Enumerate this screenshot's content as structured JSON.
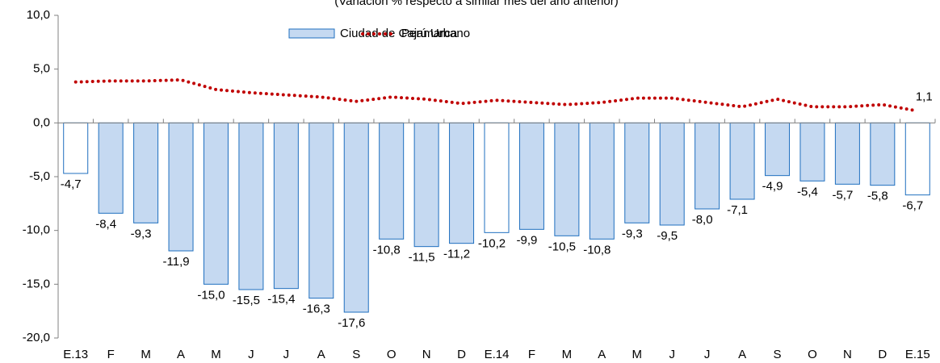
{
  "chart_data": {
    "type": "bar",
    "subtitle": "(Variación % respecto a similar mes del año anterior)",
    "categories": [
      "E.13",
      "F",
      "M",
      "A",
      "M",
      "J",
      "J",
      "A",
      "S",
      "O",
      "N",
      "D",
      "E.14",
      "F",
      "M",
      "A",
      "M",
      "J",
      "J",
      "A",
      "S",
      "O",
      "N",
      "D",
      "E.15"
    ],
    "series": [
      {
        "name": "Ciudad de Cajamarca",
        "type": "bar",
        "color": "#c5d9f1",
        "edge_color": "#1f6fbf",
        "bar_colors": [
          "#ffffff",
          "#c5d9f1",
          "#c5d9f1",
          "#c5d9f1",
          "#c5d9f1",
          "#c5d9f1",
          "#c5d9f1",
          "#c5d9f1",
          "#c5d9f1",
          "#c5d9f1",
          "#c5d9f1",
          "#c5d9f1",
          "#ffffff",
          "#c5d9f1",
          "#c5d9f1",
          "#c5d9f1",
          "#c5d9f1",
          "#c5d9f1",
          "#c5d9f1",
          "#c5d9f1",
          "#c5d9f1",
          "#c5d9f1",
          "#c5d9f1",
          "#c5d9f1",
          "#ffffff"
        ],
        "values": [
          -4.7,
          -8.4,
          -9.3,
          -11.9,
          -15.0,
          -15.5,
          -15.4,
          -16.3,
          -17.6,
          -10.8,
          -11.5,
          -11.2,
          -10.2,
          -9.9,
          -10.5,
          -10.8,
          -9.3,
          -9.5,
          -8.0,
          -7.1,
          -4.9,
          -5.4,
          -5.7,
          -5.8,
          -6.7
        ],
        "value_labels": [
          "-4,7",
          "-8,4",
          "-9,3",
          "-11,9",
          "-15,0",
          "-15,5",
          "-15,4",
          "-16,3",
          "-17,6",
          "-10,8",
          "-11,5",
          "-11,2",
          "-10,2",
          "-9,9",
          "-10,5",
          "-10,8",
          "-9,3",
          "-9,5",
          "-8,0",
          "-7,1",
          "-4,9",
          "-5,4",
          "-5,7",
          "-5,8",
          "-6,7"
        ]
      },
      {
        "name": "Perú Urbano",
        "type": "line",
        "color": "#c00000",
        "line_style": "dotted",
        "values": [
          3.8,
          3.9,
          3.9,
          4.0,
          3.1,
          2.8,
          2.6,
          2.4,
          2.0,
          2.4,
          2.2,
          1.8,
          2.1,
          1.9,
          1.7,
          1.9,
          2.3,
          2.3,
          1.9,
          1.5,
          2.2,
          1.5,
          1.5,
          1.7,
          1.1
        ],
        "value_labels": [
          null,
          null,
          null,
          null,
          null,
          null,
          null,
          null,
          null,
          null,
          null,
          null,
          null,
          null,
          null,
          null,
          null,
          null,
          null,
          null,
          null,
          null,
          null,
          null,
          "1,1"
        ]
      }
    ],
    "ylim": [
      -20,
      10
    ],
    "yticks": [
      {
        "value": -20,
        "label": "-20,0"
      },
      {
        "value": -15,
        "label": "-15,0"
      },
      {
        "value": -10,
        "label": "-10,0"
      },
      {
        "value": -5,
        "label": "-5,0"
      },
      {
        "value": 0,
        "label": "0,0"
      },
      {
        "value": 5,
        "label": "5,0"
      },
      {
        "value": 10,
        "label": "10,0"
      }
    ],
    "legend": "top"
  }
}
